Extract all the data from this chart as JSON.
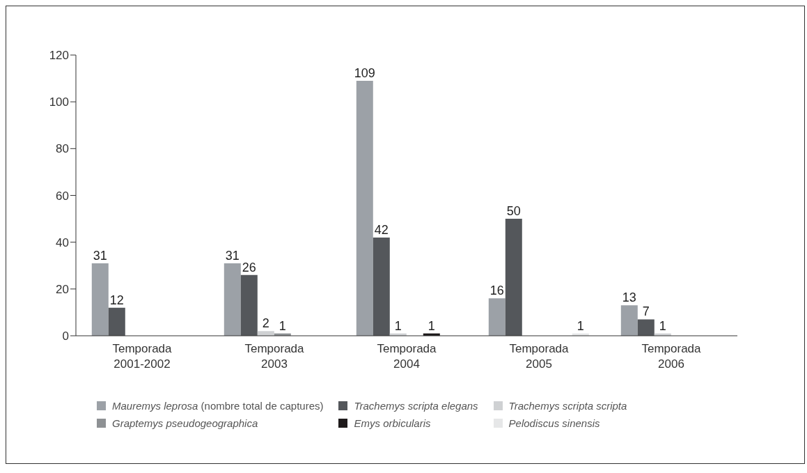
{
  "chart_data": {
    "type": "bar",
    "categories": [
      "Temporada\n2001-2002",
      "Temporada\n2003",
      "Temporada\n2004",
      "Temporada\n2005",
      "Temporada\n2006"
    ],
    "series": [
      {
        "name": "Mauremys leprosa (nombre total de captures)",
        "color": "#9ca1a7",
        "values": [
          31,
          31,
          109,
          16,
          13
        ]
      },
      {
        "name": "Trachemys scripta elegans",
        "color": "#54575b",
        "values": [
          12,
          26,
          42,
          50,
          7
        ]
      },
      {
        "name": "Trachemys scripta scripta",
        "color": "#cfd1d3",
        "values": [
          null,
          2,
          1,
          null,
          1
        ]
      },
      {
        "name": "Graptemys pseudogeographica",
        "color": "#8e9194",
        "values": [
          null,
          1,
          null,
          null,
          null
        ]
      },
      {
        "name": "Emys orbicularis",
        "color": "#1e1a1b",
        "values": [
          null,
          null,
          1,
          null,
          null
        ]
      },
      {
        "name": "Pelodiscus sinensis",
        "color": "#e6e7e8",
        "values": [
          null,
          null,
          null,
          1,
          null
        ]
      }
    ],
    "ylim": [
      0,
      120
    ],
    "yticks": [
      0,
      20,
      40,
      60,
      80,
      100,
      120
    ],
    "grid": false,
    "data_labels": true,
    "legend": "bottom"
  }
}
